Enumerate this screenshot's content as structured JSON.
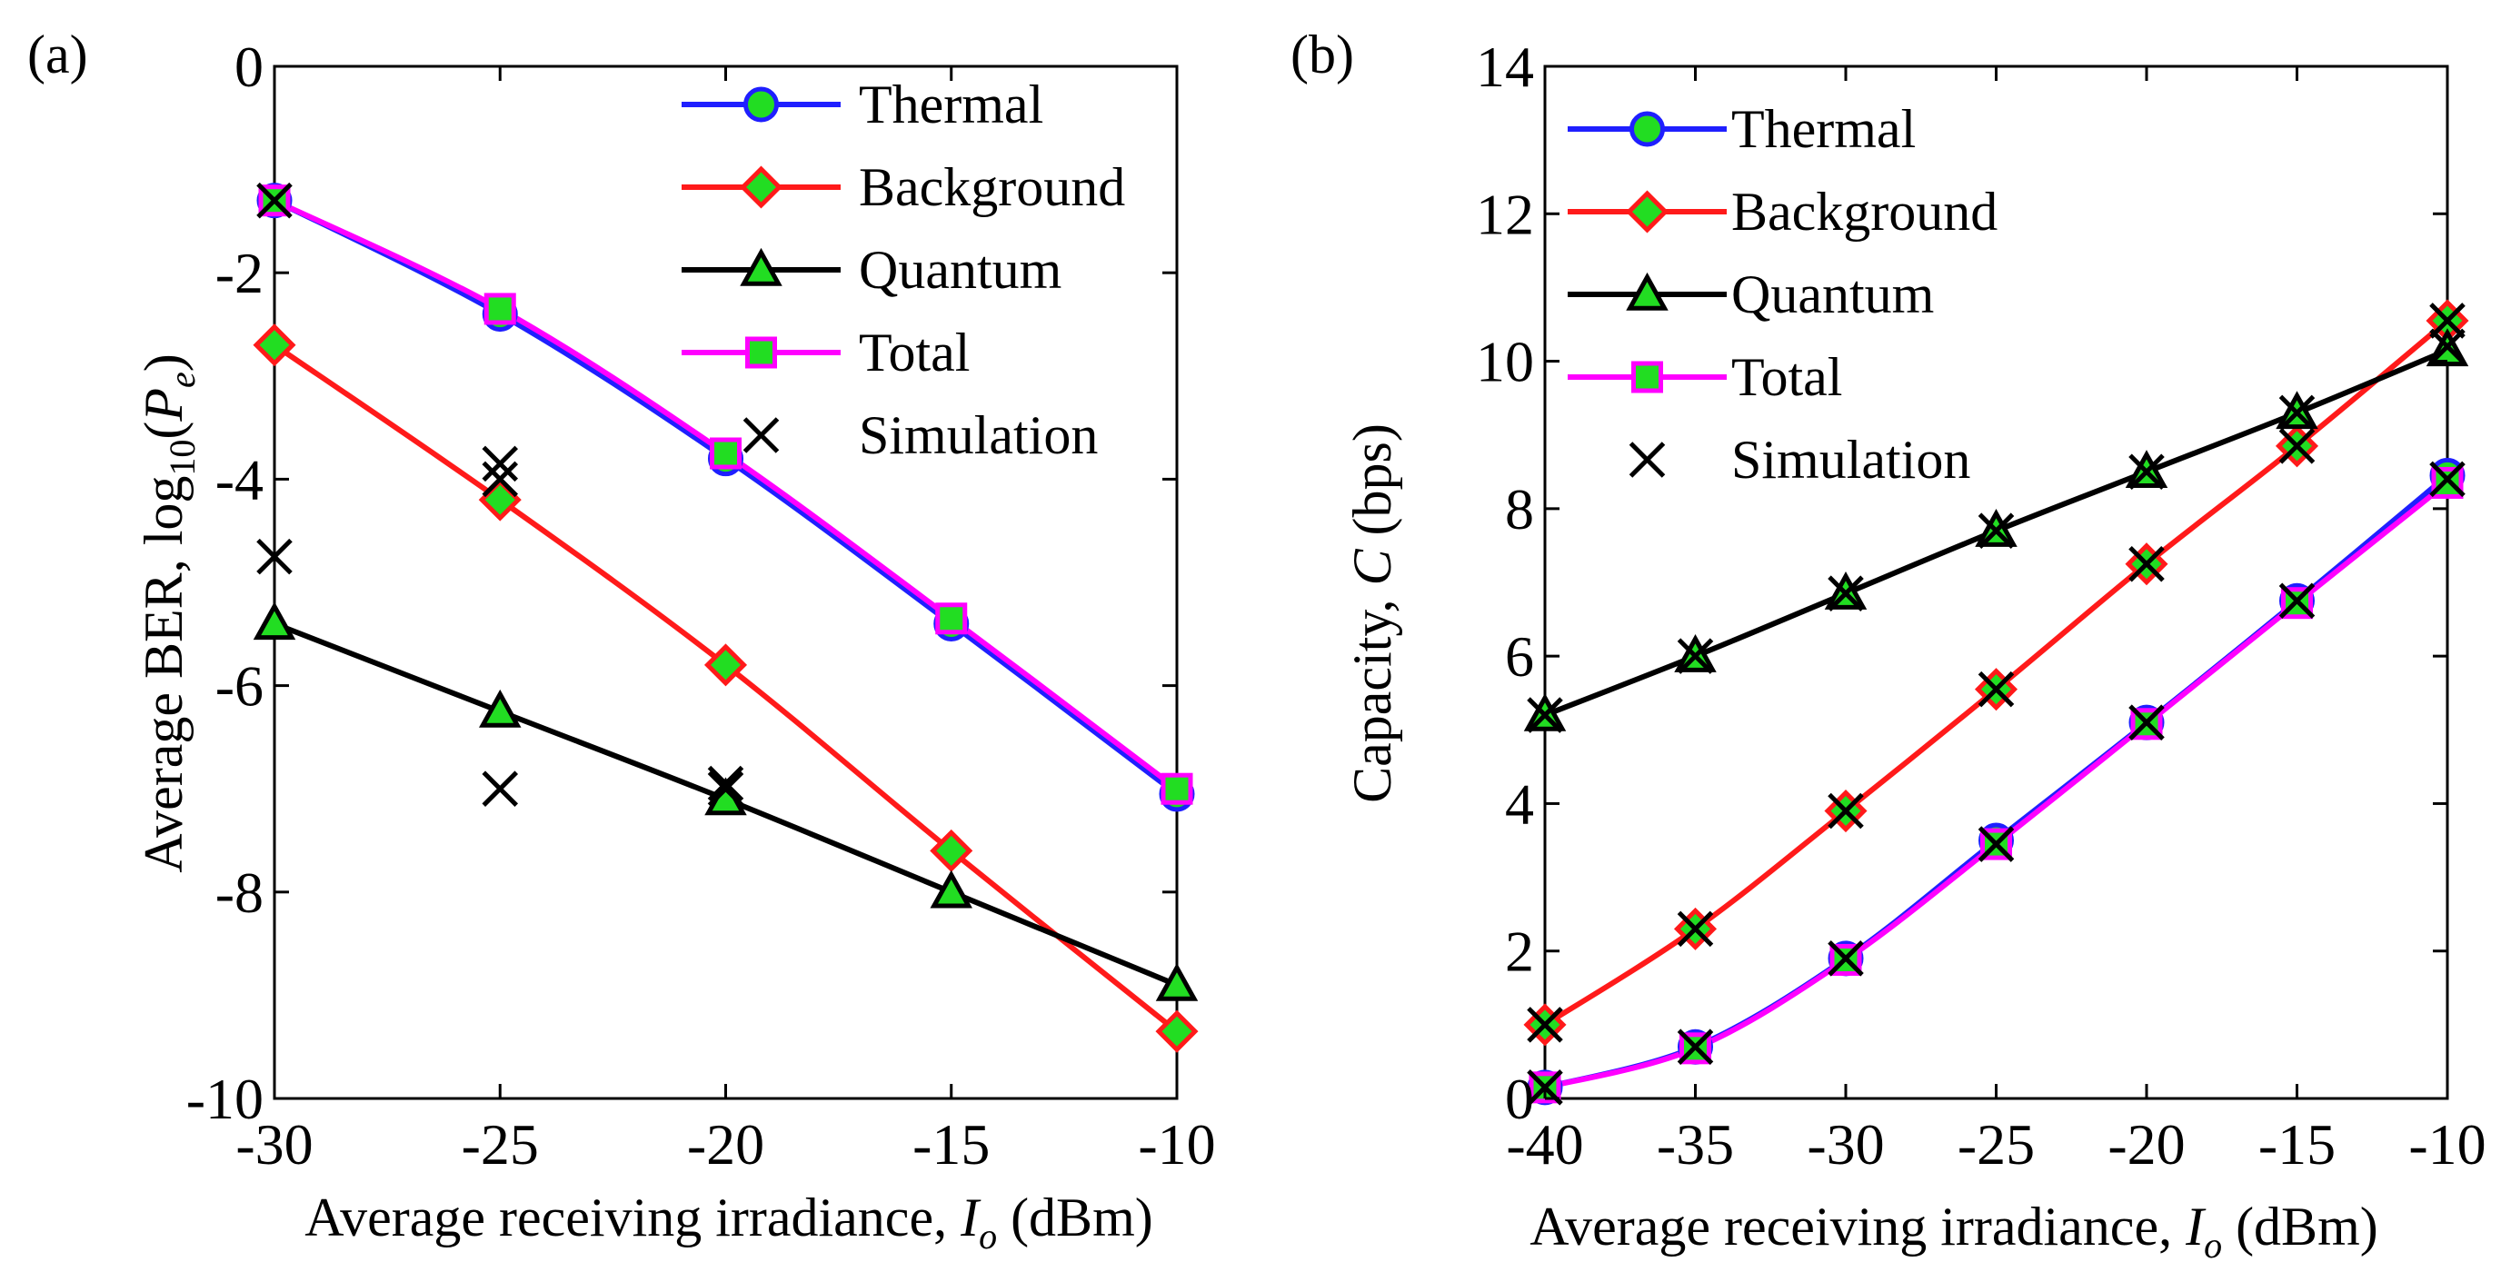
{
  "chart_data": [
    {
      "panel": "(a)",
      "type": "line",
      "xlabel_prefix": "Average receiving irradiance, ",
      "xlabel_var": "I",
      "xlabel_sub": "o",
      "xlabel_suffix": " (dBm)",
      "ylabel_prefix": "Average BER, log",
      "ylabel_sub1": "10",
      "ylabel_mid": "(",
      "ylabel_var": "P",
      "ylabel_sub2": "e",
      "ylabel_suffix": ")",
      "xlim": [
        -30,
        -10
      ],
      "ylim": [
        -10,
        0
      ],
      "xticks": [
        -30,
        -25,
        -20,
        -15,
        -10
      ],
      "yticks": [
        -10,
        -8,
        -6,
        -4,
        -2,
        0
      ],
      "legend_position": "top-right",
      "series": [
        {
          "name": "Thermal",
          "color": "#1f1fff",
          "marker": "circle",
          "x": [
            -30,
            -25,
            -20,
            -15,
            -10
          ],
          "y": [
            -1.3,
            -2.4,
            -3.8,
            -5.4,
            -7.05
          ]
        },
        {
          "name": "Background",
          "color": "#ff1a1a",
          "marker": "diamond",
          "x": [
            -30,
            -25,
            -20,
            -15,
            -10
          ],
          "y": [
            -2.7,
            -4.2,
            -5.8,
            -7.6,
            -9.35
          ]
        },
        {
          "name": "Quantum",
          "color": "#000000",
          "marker": "triangle",
          "x": [
            -30,
            -25,
            -20,
            -15,
            -10
          ],
          "y": [
            -5.4,
            -6.25,
            -7.1,
            -8.0,
            -8.9
          ]
        },
        {
          "name": "Total",
          "color": "#ff00ff",
          "marker": "square",
          "x": [
            -30,
            -25,
            -20,
            -15,
            -10
          ],
          "y": [
            -1.3,
            -2.35,
            -3.75,
            -5.35,
            -7.0
          ]
        }
      ],
      "simulation": {
        "name": "Simulation",
        "x": [
          -30,
          -30,
          -25,
          -25,
          -25,
          -20,
          -20
        ],
        "y": [
          -1.3,
          -4.75,
          -3.85,
          -4.0,
          -7.0,
          -6.95,
          -7.0
        ]
      }
    },
    {
      "panel": "(b)",
      "type": "line",
      "xlabel_prefix": "Average receiving irradiance, ",
      "xlabel_var": "I",
      "xlabel_sub": "o",
      "xlabel_suffix": " (dBm)",
      "ylabel_prefix": "Capacity, ",
      "ylabel_var": "C",
      "ylabel_suffix": " (bps)",
      "xlim": [
        -40,
        -10
      ],
      "ylim": [
        0,
        14
      ],
      "xticks": [
        -40,
        -35,
        -30,
        -25,
        -20,
        -15,
        -10
      ],
      "yticks": [
        0,
        2,
        4,
        6,
        8,
        10,
        12,
        14
      ],
      "legend_position": "top-left",
      "series": [
        {
          "name": "Thermal",
          "color": "#1f1fff",
          "marker": "circle",
          "x": [
            -40,
            -35,
            -30,
            -25,
            -20,
            -15,
            -10
          ],
          "y": [
            0.15,
            0.7,
            1.9,
            3.5,
            5.1,
            6.75,
            8.45
          ]
        },
        {
          "name": "Background",
          "color": "#ff1a1a",
          "marker": "diamond",
          "x": [
            -40,
            -35,
            -30,
            -25,
            -20,
            -15,
            -10
          ],
          "y": [
            1.0,
            2.3,
            3.9,
            5.55,
            7.25,
            8.85,
            10.55
          ]
        },
        {
          "name": "Quantum",
          "color": "#000000",
          "marker": "triangle",
          "x": [
            -40,
            -35,
            -30,
            -25,
            -20,
            -15,
            -10
          ],
          "y": [
            5.2,
            6.0,
            6.85,
            7.7,
            8.5,
            9.3,
            10.15
          ]
        },
        {
          "name": "Total",
          "color": "#ff00ff",
          "marker": "square",
          "x": [
            -40,
            -35,
            -30,
            -25,
            -20,
            -15,
            -10
          ],
          "y": [
            0.15,
            0.68,
            1.88,
            3.45,
            5.08,
            6.72,
            8.35
          ]
        }
      ],
      "simulation": {
        "name": "Simulation",
        "x": [
          -40,
          -35,
          -30,
          -25,
          -20,
          -15,
          -10,
          -40,
          -35,
          -30,
          -25,
          -20,
          -15,
          -10,
          -40,
          -35,
          -30,
          -25,
          -20,
          -15,
          -10
        ],
        "y": [
          0.15,
          0.7,
          1.9,
          3.45,
          5.1,
          6.75,
          8.4,
          1.0,
          2.3,
          3.9,
          5.55,
          7.25,
          8.85,
          10.55,
          5.2,
          6.0,
          6.85,
          7.7,
          8.5,
          9.3,
          10.2
        ]
      }
    }
  ]
}
